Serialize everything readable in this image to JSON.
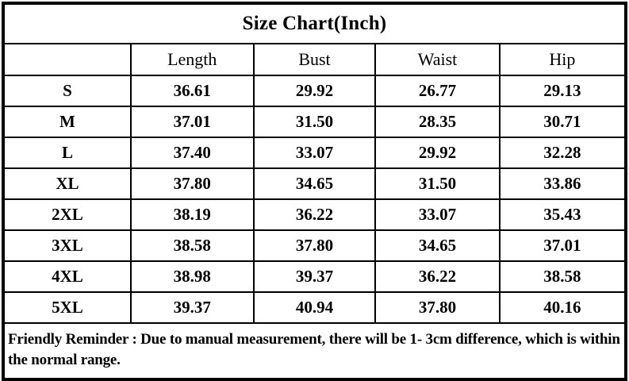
{
  "title": "Size Chart(Inch)",
  "table": {
    "columns": [
      "Length",
      "Bust",
      "Waist",
      "Hip"
    ],
    "rows": [
      {
        "size": "S",
        "values": [
          "36.61",
          "29.92",
          "26.77",
          "29.13"
        ]
      },
      {
        "size": "M",
        "values": [
          "37.01",
          "31.50",
          "28.35",
          "30.71"
        ]
      },
      {
        "size": "L",
        "values": [
          "37.40",
          "33.07",
          "29.92",
          "32.28"
        ]
      },
      {
        "size": "XL",
        "values": [
          "37.80",
          "34.65",
          "31.50",
          "33.86"
        ]
      },
      {
        "size": "2XL",
        "values": [
          "38.19",
          "36.22",
          "33.07",
          "35.43"
        ]
      },
      {
        "size": "3XL",
        "values": [
          "38.58",
          "37.80",
          "34.65",
          "37.01"
        ]
      },
      {
        "size": "4XL",
        "values": [
          "38.98",
          "39.37",
          "36.22",
          "38.58"
        ]
      },
      {
        "size": "5XL",
        "values": [
          "39.37",
          "40.94",
          "37.80",
          "40.16"
        ]
      }
    ],
    "footer": "Friendly Reminder : Due to manual measurement, there will be 1- 3cm difference, which is within the normal range."
  },
  "colors": {
    "background": "#ffffff",
    "border": "#000000",
    "text": "#000000"
  }
}
